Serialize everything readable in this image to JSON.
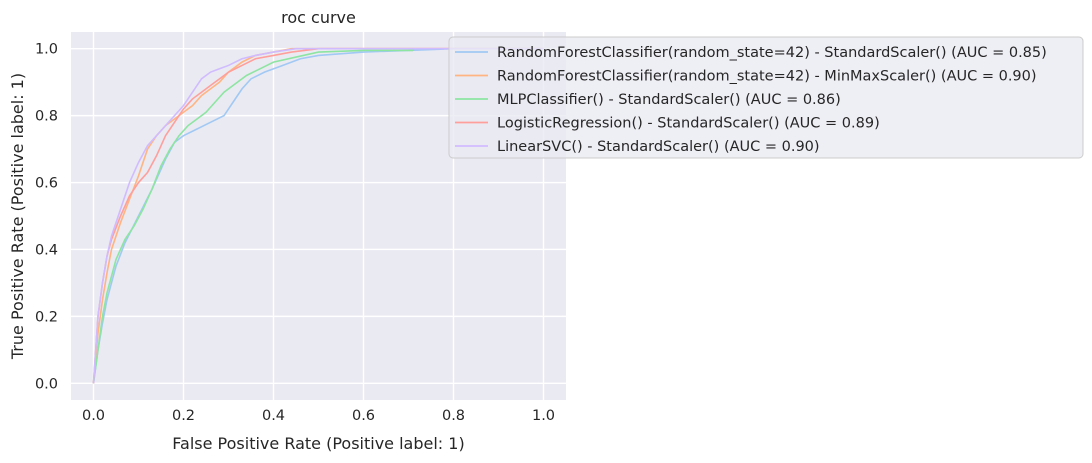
{
  "chart_data": {
    "type": "line",
    "title": "roc curve",
    "xlabel": "False Positive Rate (Positive label: 1)",
    "ylabel": "True Positive Rate (Positive label: 1)",
    "xlim": [
      -0.05,
      1.05
    ],
    "ylim": [
      -0.05,
      1.05
    ],
    "xticks": [
      "0.0",
      "0.2",
      "0.4",
      "0.6",
      "0.8",
      "1.0"
    ],
    "yticks": [
      "0.0",
      "0.2",
      "0.4",
      "0.6",
      "0.8",
      "1.0"
    ],
    "grid": true,
    "legend_position": "upper-right, extending outside plot",
    "background_color": "#eaeaf2",
    "series": [
      {
        "name": "RandomForestClassifier(random_state=42) - StandardScaler() (AUC = 0.85)",
        "color": "#a1c9f4",
        "x": [
          0,
          0.01,
          0.02,
          0.03,
          0.05,
          0.07,
          0.1,
          0.13,
          0.16,
          0.18,
          0.2,
          0.23,
          0.26,
          0.29,
          0.31,
          0.33,
          0.35,
          0.38,
          0.42,
          0.46,
          0.5,
          0.6,
          0.7,
          0.8,
          0.9,
          1.0
        ],
        "y": [
          0,
          0.1,
          0.18,
          0.25,
          0.35,
          0.42,
          0.5,
          0.58,
          0.67,
          0.72,
          0.74,
          0.76,
          0.78,
          0.8,
          0.84,
          0.88,
          0.91,
          0.93,
          0.95,
          0.97,
          0.98,
          0.99,
          0.995,
          1.0,
          1.0,
          1.0
        ]
      },
      {
        "name": "RandomForestClassifier(random_state=42) - MinMaxScaler() (AUC = 0.90)",
        "color": "#ffb482",
        "x": [
          0,
          0.01,
          0.02,
          0.03,
          0.04,
          0.06,
          0.08,
          0.1,
          0.12,
          0.14,
          0.16,
          0.18,
          0.2,
          0.22,
          0.24,
          0.26,
          0.28,
          0.3,
          0.33,
          0.36,
          0.4,
          0.44,
          0.5,
          0.6,
          0.8,
          1.0
        ],
        "y": [
          0,
          0.15,
          0.25,
          0.33,
          0.4,
          0.48,
          0.55,
          0.62,
          0.7,
          0.74,
          0.77,
          0.79,
          0.81,
          0.83,
          0.86,
          0.88,
          0.9,
          0.93,
          0.96,
          0.98,
          0.99,
          1.0,
          1.0,
          1.0,
          1.0,
          1.0
        ]
      },
      {
        "name": "MLPClassifier() - StandardScaler() (AUC = 0.86)",
        "color": "#8de5a1",
        "x": [
          0,
          0.01,
          0.02,
          0.03,
          0.05,
          0.07,
          0.09,
          0.11,
          0.13,
          0.15,
          0.17,
          0.19,
          0.21,
          0.23,
          0.25,
          0.27,
          0.29,
          0.31,
          0.34,
          0.37,
          0.4,
          0.45,
          0.5,
          0.6,
          0.71,
          0.71
        ],
        "y": [
          0,
          0.1,
          0.2,
          0.27,
          0.37,
          0.43,
          0.47,
          0.52,
          0.58,
          0.65,
          0.7,
          0.74,
          0.77,
          0.79,
          0.81,
          0.84,
          0.87,
          0.89,
          0.92,
          0.94,
          0.96,
          0.975,
          0.99,
          0.995,
          0.995,
          0.995
        ]
      },
      {
        "name": "LogisticRegression() - StandardScaler() (AUC = 0.89)",
        "color": "#ff9f9b",
        "x": [
          0,
          0.01,
          0.02,
          0.03,
          0.04,
          0.06,
          0.08,
          0.1,
          0.12,
          0.14,
          0.16,
          0.18,
          0.2,
          0.22,
          0.24,
          0.26,
          0.28,
          0.3,
          0.33,
          0.36,
          0.4,
          0.44,
          0.5,
          0.6,
          0.8,
          1.0
        ],
        "y": [
          0,
          0.2,
          0.3,
          0.38,
          0.43,
          0.5,
          0.56,
          0.6,
          0.63,
          0.68,
          0.74,
          0.78,
          0.82,
          0.85,
          0.87,
          0.89,
          0.91,
          0.93,
          0.95,
          0.97,
          0.98,
          0.99,
          1.0,
          1.0,
          1.0,
          1.0
        ]
      },
      {
        "name": "LinearSVC() - StandardScaler() (AUC = 0.90)",
        "color": "#d0bbff",
        "x": [
          0,
          0.01,
          0.02,
          0.03,
          0.04,
          0.06,
          0.08,
          0.1,
          0.12,
          0.14,
          0.16,
          0.18,
          0.2,
          0.22,
          0.24,
          0.26,
          0.28,
          0.3,
          0.33,
          0.36,
          0.4,
          0.45,
          0.5,
          0.6,
          0.8,
          1.0
        ],
        "y": [
          0,
          0.2,
          0.3,
          0.38,
          0.44,
          0.52,
          0.6,
          0.66,
          0.71,
          0.74,
          0.77,
          0.8,
          0.83,
          0.87,
          0.91,
          0.93,
          0.94,
          0.95,
          0.97,
          0.98,
          0.99,
          1.0,
          1.0,
          1.0,
          1.0,
          1.0
        ]
      }
    ]
  }
}
